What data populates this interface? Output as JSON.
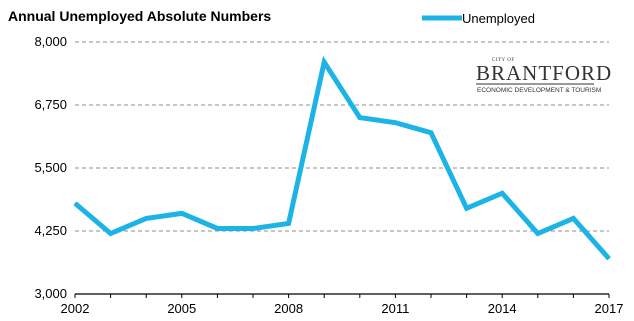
{
  "chart_data": {
    "type": "line",
    "title": "Annual Unemployed Absolute Numbers",
    "xlabel": "",
    "ylabel": "",
    "x": [
      2002,
      2003,
      2004,
      2005,
      2006,
      2007,
      2008,
      2009,
      2010,
      2011,
      2012,
      2013,
      2014,
      2015,
      2016,
      2017
    ],
    "series": [
      {
        "name": "Unemployed",
        "values": [
          4800,
          4200,
          4500,
          4600,
          4300,
          4300,
          4400,
          7600,
          6500,
          6400,
          6200,
          4700,
          5000,
          4200,
          4500,
          3700
        ]
      }
    ],
    "xticks": [
      2002,
      2005,
      2008,
      2011,
      2014,
      2017
    ],
    "yticks": [
      "3,000",
      "4,250",
      "5,500",
      "6,750",
      "8,000"
    ],
    "ytick_values": [
      3000,
      4250,
      5500,
      6750,
      8000
    ],
    "xlim": [
      2002,
      2017
    ],
    "ylim": [
      3000,
      8000
    ],
    "grid": true,
    "legend_position": "top-right",
    "series_color": "#1cb4e6"
  },
  "logo": {
    "city": "CITY OF",
    "name": "BRANTFORD",
    "subtitle": "ECONOMIC DEVELOPMENT & TOURISM"
  }
}
